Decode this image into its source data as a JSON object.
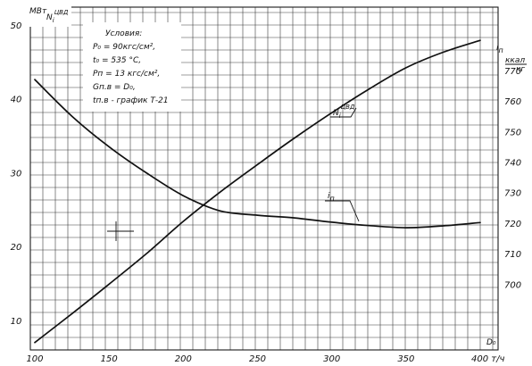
{
  "chart_data": {
    "type": "line",
    "x": [
      100,
      125,
      150,
      175,
      200,
      225,
      250,
      275,
      300,
      325,
      350,
      375,
      400
    ],
    "x_ticks": [
      "100",
      "150",
      "200",
      "250",
      "300",
      "350"
    ],
    "x_tick_values": [
      100,
      150,
      200,
      250,
      300,
      350
    ],
    "x_last_tick": "400 т/ч",
    "x_last_tick_value": 400,
    "xlabel": "D₀",
    "xlim": [
      97,
      412
    ],
    "left_axis": {
      "label_top": "МВт",
      "label_symbol": "N",
      "label_sub": "i",
      "label_sup": "ЦВД",
      "ticks": [
        "10",
        "20",
        "30",
        "40",
        "50"
      ],
      "tick_values": [
        10,
        20,
        30,
        40,
        50
      ],
      "ylim": [
        6,
        52.4
      ]
    },
    "right_axis": {
      "label_symbol": "i",
      "label_sub": "п",
      "label_unit_top": "ккал",
      "label_unit_bottom": "кг",
      "ticks": [
        "700",
        "710",
        "720",
        "730",
        "740",
        "750",
        "760",
        "770"
      ],
      "tick_values": [
        700,
        710,
        720,
        730,
        740,
        750,
        760,
        770
      ],
      "ylim": [
        678.5,
        790.7
      ]
    },
    "series": [
      {
        "name": "N_i ЦВД",
        "label_symbol": "N",
        "label_sub": "i",
        "label_sup": "ЦВД",
        "axis": "left",
        "values": [
          7.0,
          10.9,
          14.9,
          19.0,
          23.4,
          27.4,
          31.1,
          34.7,
          38.1,
          41.3,
          44.2,
          46.3,
          47.9
        ]
      },
      {
        "name": "i_п",
        "label_symbol": "i",
        "label_sub": "п",
        "axis": "right",
        "values": [
          767.0,
          755.0,
          745.0,
          736.5,
          729.0,
          724.0,
          722.6,
          721.7,
          720.3,
          719.2,
          718.5,
          719.1,
          720.2
        ]
      }
    ],
    "grid": true,
    "conditions": {
      "title": "Условия:",
      "lines": [
        "P₀  = 90кгс/см²,",
        "t₀  = 535 °С,",
        "Pп  = 13 кгс/см²,",
        "Gп.в  = D₀,",
        "tп.в - график Т-21"
      ]
    }
  }
}
